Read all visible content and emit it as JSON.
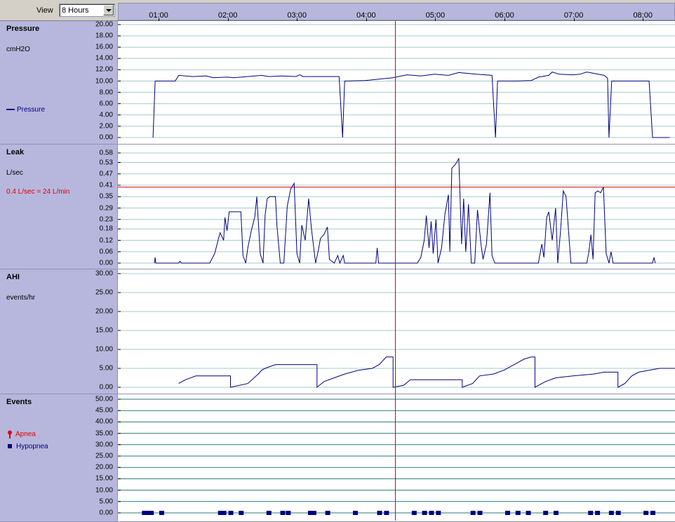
{
  "toolbar": {
    "view_label": "View",
    "view_value": "8 Hours"
  },
  "timeline": {
    "ticks": [
      "01:00",
      "02:00",
      "03:00",
      "04:00",
      "05:00",
      "06:00",
      "07:00",
      "08:00"
    ]
  },
  "colors": {
    "panel_bg": "#b7b7dd",
    "series": "#000080",
    "marker": "#e00000",
    "grid": "#a8c8c8",
    "events_grid": "#2e7a7a"
  },
  "panels": {
    "pressure": {
      "title": "Pressure",
      "unit": "cmH2O",
      "legend": "Pressure",
      "legend_icon": "line-swatch-icon"
    },
    "leak": {
      "title": "Leak",
      "unit": "L/sec",
      "note": "0.4 L/sec = 24 L/min"
    },
    "ahi": {
      "title": "AHI",
      "unit": "events/hr"
    },
    "events": {
      "title": "Events",
      "legend_apnea": "Apnea",
      "legend_hypopnea": "Hypopnea",
      "apnea_icon": "pin-icon",
      "hypopnea_icon": "square-icon"
    }
  },
  "chart_data": [
    {
      "name": "Pressure",
      "type": "line",
      "ylabel": "cmH2O",
      "ylim": [
        0,
        20
      ],
      "ticks": [
        "20.00",
        "18.00",
        "16.00",
        "14.00",
        "12.00",
        "10.00",
        "8.00",
        "6.00",
        "4.00",
        "2.00",
        "0.00"
      ],
      "grid": true,
      "x_unit": "hours",
      "series": [
        {
          "name": "Pressure",
          "points": [
            [
              0.93,
              0
            ],
            [
              0.96,
              10
            ],
            [
              1.25,
              10
            ],
            [
              1.3,
              11
            ],
            [
              1.5,
              10.8
            ],
            [
              1.7,
              10.9
            ],
            [
              1.8,
              10.6
            ],
            [
              2.0,
              10.7
            ],
            [
              2.1,
              10.6
            ],
            [
              2.3,
              10.8
            ],
            [
              2.5,
              11.0
            ],
            [
              2.6,
              10.8
            ],
            [
              2.8,
              10.9
            ],
            [
              3.0,
              10.8
            ],
            [
              3.05,
              11.1
            ],
            [
              3.1,
              10.8
            ],
            [
              3.5,
              10.8
            ],
            [
              3.62,
              10.8
            ],
            [
              3.67,
              0
            ],
            [
              3.7,
              10.0
            ],
            [
              3.75,
              10.0
            ],
            [
              4.0,
              10.1
            ],
            [
              4.4,
              10.6
            ],
            [
              4.6,
              11.1
            ],
            [
              4.8,
              10.9
            ],
            [
              5.0,
              11.2
            ],
            [
              5.2,
              11.0
            ],
            [
              5.35,
              11.5
            ],
            [
              5.6,
              11.2
            ],
            [
              5.83,
              11.0
            ],
            [
              5.88,
              0
            ],
            [
              5.91,
              10.0
            ],
            [
              6.2,
              10.0
            ],
            [
              6.4,
              10.1
            ],
            [
              6.5,
              10.7
            ],
            [
              6.65,
              11.0
            ],
            [
              6.7,
              11.6
            ],
            [
              6.8,
              11.2
            ],
            [
              7.0,
              11.1
            ],
            [
              7.1,
              11.2
            ],
            [
              7.2,
              11.6
            ],
            [
              7.45,
              11.0
            ],
            [
              7.5,
              10.5
            ],
            [
              7.52,
              0
            ],
            [
              7.56,
              10.0
            ],
            [
              8.1,
              10.0
            ],
            [
              8.15,
              0
            ],
            [
              8.4,
              0
            ]
          ]
        }
      ]
    },
    {
      "name": "Leak",
      "type": "line",
      "ylabel": "L/sec",
      "ylim": [
        0,
        0.58
      ],
      "ticks": [
        "0.58",
        "0.53",
        "0.47",
        "0.41",
        "0.35",
        "0.29",
        "0.23",
        "0.18",
        "0.12",
        "0.06",
        "0.00"
      ],
      "grid": true,
      "reference_line": 0.4,
      "series": [
        {
          "name": "Leak",
          "points": [
            [
              0.95,
              0
            ],
            [
              0.96,
              0.03
            ],
            [
              0.97,
              0
            ],
            [
              1.3,
              0
            ],
            [
              1.32,
              0.01
            ],
            [
              1.34,
              0
            ],
            [
              1.75,
              0
            ],
            [
              1.82,
              0.05
            ],
            [
              1.87,
              0.12
            ],
            [
              1.9,
              0.16
            ],
            [
              1.95,
              0.12
            ],
            [
              1.97,
              0.24
            ],
            [
              2.0,
              0.17
            ],
            [
              2.03,
              0.27
            ],
            [
              2.1,
              0.27
            ],
            [
              2.2,
              0.27
            ],
            [
              2.23,
              0.04
            ],
            [
              2.27,
              0.0
            ],
            [
              2.3,
              0.08
            ],
            [
              2.35,
              0.17
            ],
            [
              2.4,
              0.24
            ],
            [
              2.43,
              0.35
            ],
            [
              2.48,
              0.05
            ],
            [
              2.52,
              0.0
            ],
            [
              2.55,
              0.25
            ],
            [
              2.58,
              0.34
            ],
            [
              2.62,
              0.35
            ],
            [
              2.7,
              0.35
            ],
            [
              2.72,
              0.2
            ],
            [
              2.77,
              0.0
            ],
            [
              2.82,
              0.0
            ],
            [
              2.87,
              0.3
            ],
            [
              2.92,
              0.39
            ],
            [
              2.97,
              0.42
            ],
            [
              3.01,
              0.05
            ],
            [
              3.05,
              0.0
            ],
            [
              3.08,
              0.2
            ],
            [
              3.13,
              0.12
            ],
            [
              3.18,
              0.34
            ],
            [
              3.22,
              0.18
            ],
            [
              3.28,
              0.0
            ],
            [
              3.32,
              0.07
            ],
            [
              3.35,
              0.13
            ],
            [
              3.4,
              0.15
            ],
            [
              3.45,
              0.19
            ],
            [
              3.48,
              0.02
            ],
            [
              3.55,
              0.0
            ],
            [
              3.6,
              0.04
            ],
            [
              3.63,
              0.0
            ],
            [
              3.68,
              0.04
            ],
            [
              3.7,
              0
            ],
            [
              4.15,
              0
            ],
            [
              4.17,
              0.08
            ],
            [
              4.19,
              0
            ],
            [
              4.75,
              0
            ],
            [
              4.8,
              0.03
            ],
            [
              4.85,
              0.12
            ],
            [
              4.88,
              0.25
            ],
            [
              4.92,
              0.08
            ],
            [
              4.95,
              0.22
            ],
            [
              4.98,
              0.05
            ],
            [
              5.02,
              0.23
            ],
            [
              5.05,
              0.0
            ],
            [
              5.1,
              0.08
            ],
            [
              5.15,
              0.26
            ],
            [
              5.2,
              0.36
            ],
            [
              5.22,
              0.06
            ],
            [
              5.25,
              0.5
            ],
            [
              5.3,
              0.52
            ],
            [
              5.35,
              0.55
            ],
            [
              5.39,
              0.1
            ],
            [
              5.42,
              0.34
            ],
            [
              5.45,
              0.06
            ],
            [
              5.49,
              0.31
            ],
            [
              5.53,
              0.0
            ],
            [
              5.58,
              0.0
            ],
            [
              5.62,
              0.28
            ],
            [
              5.67,
              0.1
            ],
            [
              5.7,
              0.02
            ],
            [
              5.75,
              0.1
            ],
            [
              5.8,
              0.37
            ],
            [
              5.83,
              0.04
            ],
            [
              5.87,
              0.0
            ],
            [
              6.5,
              0.0
            ],
            [
              6.55,
              0.1
            ],
            [
              6.58,
              0.03
            ],
            [
              6.62,
              0.24
            ],
            [
              6.65,
              0.27
            ],
            [
              6.7,
              0.12
            ],
            [
              6.75,
              0.29
            ],
            [
              6.78,
              0.0
            ],
            [
              6.82,
              0.17
            ],
            [
              6.86,
              0.38
            ],
            [
              6.9,
              0.35
            ],
            [
              6.93,
              0.2
            ],
            [
              6.97,
              0.0
            ],
            [
              7.2,
              0.0
            ],
            [
              7.23,
              0.06
            ],
            [
              7.26,
              0.15
            ],
            [
              7.29,
              0.02
            ],
            [
              7.32,
              0.37
            ],
            [
              7.36,
              0.38
            ],
            [
              7.4,
              0.37
            ],
            [
              7.44,
              0.4
            ],
            [
              7.48,
              0.05
            ],
            [
              7.52,
              0.0
            ],
            [
              7.55,
              0.06
            ],
            [
              7.58,
              0.0
            ],
            [
              8.15,
              0.0
            ],
            [
              8.17,
              0.03
            ],
            [
              8.19,
              0
            ]
          ]
        }
      ]
    },
    {
      "name": "AHI",
      "type": "line",
      "ylabel": "events/hr",
      "ylim": [
        0,
        30
      ],
      "ticks": [
        "30.00",
        "25.00",
        "20.00",
        "15.00",
        "10.00",
        "5.00",
        "0.00"
      ],
      "grid": true,
      "series": [
        {
          "name": "AHI",
          "points": [
            [
              1.3,
              1.0
            ],
            [
              1.4,
              2.0
            ],
            [
              1.55,
              3.0
            ],
            [
              2.05,
              3.0
            ],
            [
              2.05,
              0.0
            ],
            [
              2.3,
              1.0
            ],
            [
              2.45,
              3.5
            ],
            [
              2.5,
              4.5
            ],
            [
              2.55,
              5.0
            ],
            [
              2.7,
              6.0
            ],
            [
              2.95,
              6.0
            ],
            [
              3.3,
              6.0
            ],
            [
              3.3,
              0.0
            ],
            [
              3.4,
              1.5
            ],
            [
              3.55,
              2.5
            ],
            [
              3.7,
              3.5
            ],
            [
              3.9,
              4.5
            ],
            [
              4.1,
              5.0
            ],
            [
              4.2,
              6.0
            ],
            [
              4.3,
              8.0
            ],
            [
              4.4,
              8.0
            ],
            [
              4.4,
              0.0
            ],
            [
              4.55,
              0.5
            ],
            [
              4.65,
              2.0
            ],
            [
              5.0,
              2.0
            ],
            [
              5.4,
              2.0
            ],
            [
              5.4,
              0.0
            ],
            [
              5.55,
              1.0
            ],
            [
              5.65,
              3.0
            ],
            [
              5.85,
              3.5
            ],
            [
              6.0,
              4.5
            ],
            [
              6.15,
              6.0
            ],
            [
              6.3,
              7.5
            ],
            [
              6.4,
              8.0
            ],
            [
              6.45,
              8.0
            ],
            [
              6.45,
              0.0
            ],
            [
              6.6,
              1.5
            ],
            [
              6.75,
              2.5
            ],
            [
              7.0,
              3.0
            ],
            [
              7.3,
              3.5
            ],
            [
              7.45,
              4.0
            ],
            [
              7.65,
              4.0
            ],
            [
              7.65,
              0.0
            ],
            [
              7.75,
              1.0
            ],
            [
              7.85,
              3.0
            ],
            [
              7.95,
              4.0
            ],
            [
              8.1,
              4.5
            ],
            [
              8.25,
              5.0
            ],
            [
              8.65,
              5.0
            ],
            [
              8.65,
              0.0
            ],
            [
              8.75,
              1.0
            ],
            [
              8.85,
              2.0
            ],
            [
              9.0,
              2.0
            ]
          ]
        }
      ]
    },
    {
      "name": "Events",
      "type": "scatter",
      "ylim": [
        0,
        50
      ],
      "ticks": [
        "50.00",
        "45.00",
        "40.00",
        "35.00",
        "30.00",
        "25.00",
        "20.00",
        "15.00",
        "10.00",
        "5.00",
        "0.00"
      ],
      "grid": true,
      "series": [
        {
          "name": "Apnea",
          "points": []
        },
        {
          "name": "Hypopnea",
          "points": [
            [
              0.8,
              0
            ],
            [
              0.85,
              0
            ],
            [
              0.9,
              0
            ],
            [
              1.05,
              0
            ],
            [
              1.9,
              0
            ],
            [
              1.95,
              0
            ],
            [
              2.05,
              0
            ],
            [
              2.2,
              0
            ],
            [
              2.6,
              0
            ],
            [
              2.8,
              0
            ],
            [
              2.88,
              0
            ],
            [
              3.2,
              0
            ],
            [
              3.25,
              0
            ],
            [
              3.45,
              0
            ],
            [
              3.85,
              0
            ],
            [
              4.2,
              0
            ],
            [
              4.3,
              0
            ],
            [
              4.7,
              0
            ],
            [
              4.85,
              0
            ],
            [
              4.95,
              0
            ],
            [
              5.05,
              0
            ],
            [
              5.55,
              0
            ],
            [
              5.65,
              0
            ],
            [
              6.05,
              0
            ],
            [
              6.2,
              0
            ],
            [
              6.35,
              0
            ],
            [
              6.6,
              0
            ],
            [
              6.75,
              0
            ],
            [
              7.25,
              0
            ],
            [
              7.35,
              0
            ],
            [
              7.55,
              0
            ],
            [
              7.65,
              0
            ],
            [
              8.05,
              0
            ],
            [
              8.15,
              0
            ]
          ]
        }
      ]
    }
  ]
}
